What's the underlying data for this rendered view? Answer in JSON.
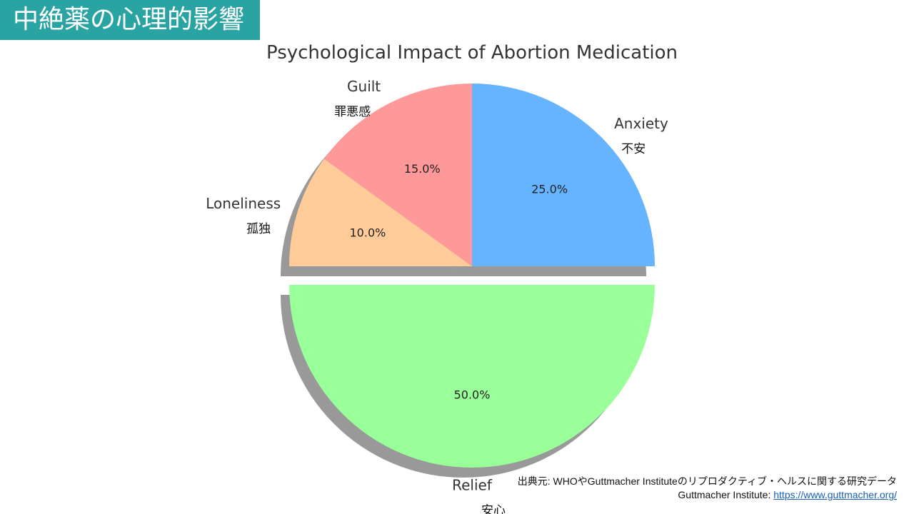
{
  "header": {
    "title": "中絶薬の心理的影響"
  },
  "chart_data": {
    "type": "pie",
    "title": "Psychological Impact of Abortion Medication",
    "slices": [
      {
        "label": "Anxiety",
        "label_ja": "不安",
        "value": 25.0,
        "pct_label": "25.0%",
        "color": "#66b3ff",
        "exploded": false
      },
      {
        "label": "Guilt",
        "label_ja": "罪悪感",
        "value": 15.0,
        "pct_label": "15.0%",
        "color": "#ff9999",
        "exploded": false
      },
      {
        "label": "Loneliness",
        "label_ja": "孤独",
        "value": 10.0,
        "pct_label": "10.0%",
        "color": "#ffcc99",
        "exploded": false
      },
      {
        "label": "Relief",
        "label_ja": "安心",
        "value": 50.0,
        "pct_label": "50.0%",
        "color": "#99ff99",
        "exploded": true
      }
    ],
    "start_angle": 0,
    "direction": "counterclockwise",
    "shadow": true
  },
  "source": {
    "line1": "出典元: WHOやGuttmacher Instituteのリプロダクティブ・ヘルスに関する研究データ",
    "line2_prefix": "Guttmacher Institute: ",
    "line2_link": "https://www.guttmacher.org/"
  }
}
